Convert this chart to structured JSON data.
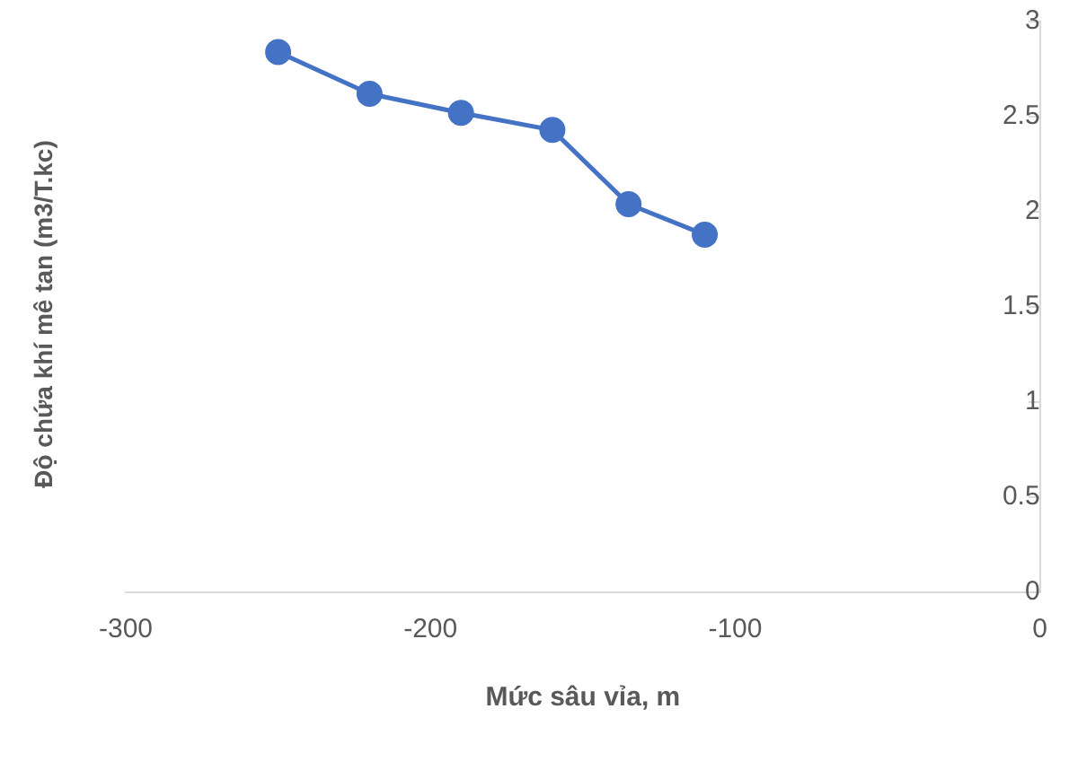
{
  "chart_data": {
    "type": "line",
    "xlabel": "Mức sâu vỉa, m",
    "ylabel": "Độ chứa khí mê tan (m3/T.kc)",
    "x": [
      -250,
      -220,
      -190,
      -160,
      -135,
      -110
    ],
    "series": [
      {
        "color": "#4472c4",
        "values": [
          2.84,
          2.62,
          2.52,
          2.43,
          2.04,
          1.88
        ]
      }
    ],
    "xlim": [
      -300,
      0
    ],
    "xticks": [
      -300,
      -200,
      -100,
      0
    ],
    "ylim": [
      0,
      3
    ],
    "yticks": [
      0,
      0.5,
      1,
      1.5,
      2,
      2.5,
      3
    ],
    "grid": false,
    "legend": false,
    "marker": "circle",
    "line_style": "solid"
  }
}
